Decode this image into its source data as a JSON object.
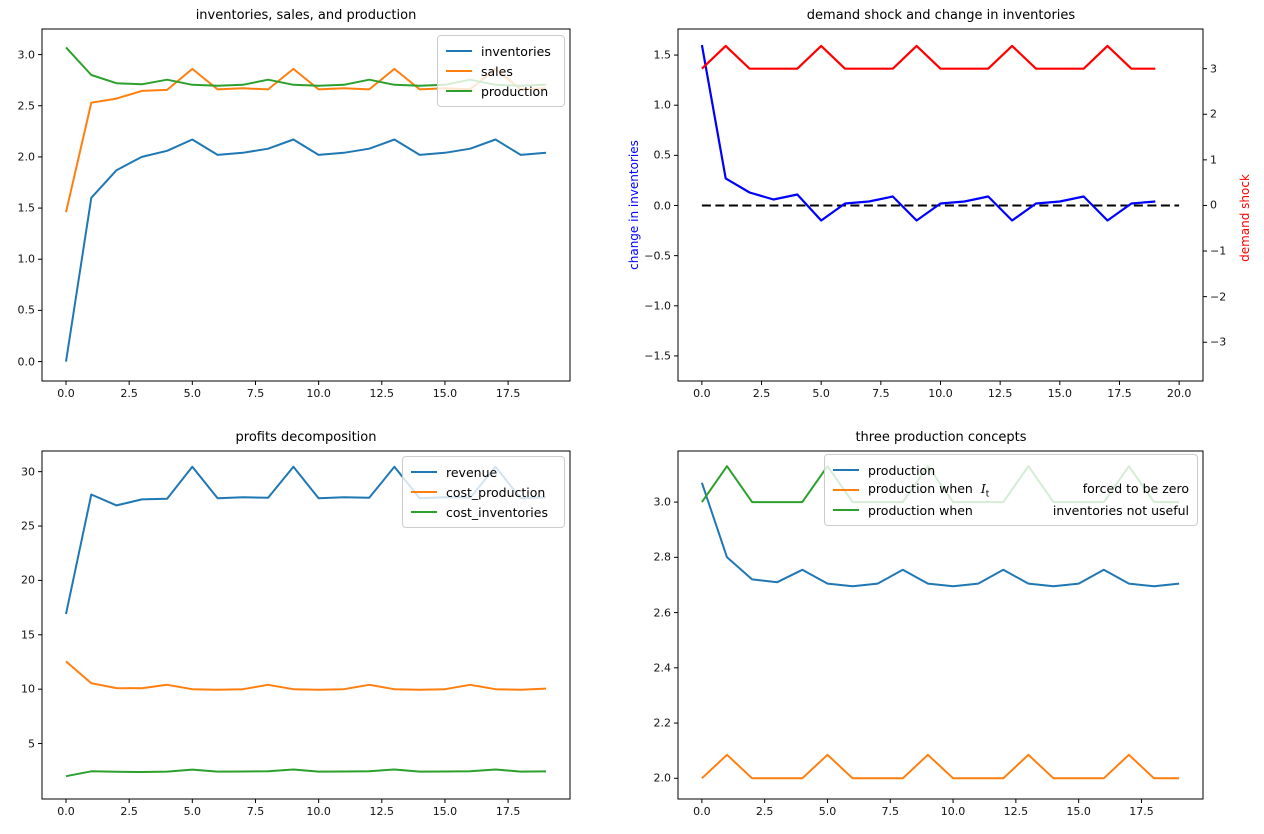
{
  "figure": {
    "background": "#ffffff"
  },
  "chart_data": [
    {
      "id": "inventories-sales-production",
      "type": "line",
      "title": "inventories, sales, and production",
      "xlabel": "",
      "ylabel": "",
      "xlim": [
        -0.95,
        19.95
      ],
      "ylim": [
        -0.19,
        3.25
      ],
      "grid": false,
      "legend_position": "upper right",
      "xticks": {
        "values": [
          0,
          2.5,
          5,
          7.5,
          10,
          12.5,
          15,
          17.5
        ],
        "labels": [
          "0.0",
          "2.5",
          "5.0",
          "7.5",
          "10.0",
          "12.5",
          "15.0",
          "17.5"
        ]
      },
      "yticks": {
        "values": [
          0,
          0.5,
          1,
          1.5,
          2,
          2.5,
          3
        ],
        "labels": [
          "0.0",
          "0.5",
          "1.0",
          "1.5",
          "2.0",
          "2.5",
          "3.0"
        ]
      },
      "x": [
        0,
        1,
        2,
        3,
        4,
        5,
        6,
        7,
        8,
        9,
        10,
        11,
        12,
        13,
        14,
        15,
        16,
        17,
        18,
        19
      ],
      "series": [
        {
          "name": "inventories",
          "color": "#1f77b4",
          "lw": 2,
          "values": [
            0.0,
            1.6,
            1.87,
            2.0,
            2.06,
            2.17,
            2.02,
            2.04,
            2.08,
            2.17,
            2.02,
            2.04,
            2.08,
            2.17,
            2.02,
            2.04,
            2.08,
            2.17,
            2.02,
            2.04
          ]
        },
        {
          "name": "sales",
          "color": "#ff7f0e",
          "lw": 2,
          "values": [
            1.46,
            2.53,
            2.57,
            2.645,
            2.655,
            2.86,
            2.66,
            2.67,
            2.66,
            2.86,
            2.66,
            2.67,
            2.66,
            2.86,
            2.66,
            2.67,
            2.66,
            2.86,
            2.66,
            2.67
          ]
        },
        {
          "name": "production",
          "color": "#2ca02c",
          "lw": 2,
          "values": [
            3.07,
            2.8,
            2.72,
            2.71,
            2.755,
            2.705,
            2.695,
            2.705,
            2.755,
            2.705,
            2.695,
            2.705,
            2.755,
            2.705,
            2.695,
            2.705,
            2.755,
            2.705,
            2.695,
            2.705
          ]
        }
      ],
      "legend": {
        "entries": [
          {
            "name": "inventories",
            "color": "#1f77b4",
            "parts": [
              "inventories"
            ]
          },
          {
            "name": "sales",
            "color": "#ff7f0e",
            "parts": [
              "sales"
            ]
          },
          {
            "name": "production",
            "color": "#2ca02c",
            "parts": [
              "production"
            ]
          }
        ]
      }
    },
    {
      "id": "demand-shock-and-change-in-inventories",
      "type": "line",
      "title": "demand shock and change in inventories",
      "ylabel_left": {
        "text": "change in inventories",
        "color": "#0000ff"
      },
      "ylabel_right": {
        "text": "demand shock",
        "color": "#ff0000"
      },
      "xlim": [
        -1,
        21
      ],
      "ylim": [
        -1.75,
        1.76
      ],
      "ylim_right": [
        -3.85,
        3.87
      ],
      "grid": false,
      "xticks": {
        "values": [
          0,
          2.5,
          5,
          7.5,
          10,
          12.5,
          15,
          17.5,
          20
        ],
        "labels": [
          "0.0",
          "2.5",
          "5.0",
          "7.5",
          "10.0",
          "12.5",
          "15.0",
          "17.5",
          "20.0"
        ]
      },
      "yticks": {
        "values": [
          -1.5,
          -1,
          -0.5,
          0,
          0.5,
          1,
          1.5
        ],
        "labels": [
          "−1.5",
          "−1.0",
          "−0.5",
          "0.0",
          "0.5",
          "1.0",
          "1.5"
        ]
      },
      "yticks_right": {
        "values": [
          -3,
          -2,
          -1,
          0,
          1,
          2,
          3
        ],
        "labels": [
          "−3",
          "−2",
          "−1",
          "0",
          "1",
          "2",
          "3"
        ]
      },
      "x": [
        0,
        1,
        2,
        3,
        4,
        5,
        6,
        7,
        8,
        9,
        10,
        11,
        12,
        13,
        14,
        15,
        16,
        17,
        18,
        19
      ],
      "series": [
        {
          "name": "zero line",
          "color": "#000000",
          "lw": 2,
          "dash": true,
          "axis": "left",
          "x": [
            0,
            20
          ],
          "values": [
            0,
            0
          ]
        },
        {
          "name": "change in inventories",
          "color": "#0000ff",
          "lw": 2.2,
          "axis": "left",
          "values": [
            1.6,
            0.27,
            0.13,
            0.06,
            0.11,
            -0.15,
            0.02,
            0.04,
            0.09,
            -0.15,
            0.02,
            0.04,
            0.09,
            -0.15,
            0.02,
            0.04,
            0.09,
            -0.15,
            0.02,
            0.04
          ]
        },
        {
          "name": "demand shock",
          "color": "#ff0000",
          "lw": 2.2,
          "axis": "right",
          "values": [
            3,
            3.5,
            3,
            3,
            3,
            3.5,
            3,
            3,
            3,
            3.5,
            3,
            3,
            3,
            3.5,
            3,
            3,
            3,
            3.5,
            3,
            3
          ]
        }
      ]
    },
    {
      "id": "profits-decomposition",
      "type": "line",
      "title": "profits decomposition",
      "xlim": [
        -0.95,
        19.95
      ],
      "ylim": [
        -0.1,
        31.9
      ],
      "grid": false,
      "legend_position": "upper right",
      "xticks": {
        "values": [
          0,
          2.5,
          5,
          7.5,
          10,
          12.5,
          15,
          17.5
        ],
        "labels": [
          "0.0",
          "2.5",
          "5.0",
          "7.5",
          "10.0",
          "12.5",
          "15.0",
          "17.5"
        ]
      },
      "yticks": {
        "values": [
          5,
          10,
          15,
          20,
          25,
          30
        ],
        "labels": [
          "5",
          "10",
          "15",
          "20",
          "25",
          "30"
        ]
      },
      "x": [
        0,
        1,
        2,
        3,
        4,
        5,
        6,
        7,
        8,
        9,
        10,
        11,
        12,
        13,
        14,
        15,
        16,
        17,
        18,
        19
      ],
      "series": [
        {
          "name": "revenue",
          "color": "#1f77b4",
          "lw": 2,
          "values": [
            16.9,
            27.9,
            26.9,
            27.45,
            27.5,
            30.45,
            27.55,
            27.65,
            27.6,
            30.45,
            27.55,
            27.65,
            27.6,
            30.45,
            27.55,
            27.65,
            27.6,
            30.45,
            27.55,
            27.65
          ]
        },
        {
          "name": "cost_production",
          "color": "#ff7f0e",
          "lw": 2,
          "values": [
            12.55,
            10.55,
            10.1,
            10.08,
            10.4,
            10.0,
            9.95,
            10.0,
            10.4,
            10.0,
            9.95,
            10.0,
            10.4,
            10.0,
            9.95,
            10.0,
            10.4,
            10.0,
            9.95,
            10.05
          ]
        },
        {
          "name": "cost_inventories",
          "color": "#2ca02c",
          "lw": 2,
          "values": [
            2.0,
            2.45,
            2.4,
            2.38,
            2.42,
            2.6,
            2.42,
            2.43,
            2.46,
            2.61,
            2.42,
            2.43,
            2.46,
            2.61,
            2.42,
            2.43,
            2.46,
            2.61,
            2.42,
            2.44
          ]
        }
      ],
      "legend": {
        "entries": [
          {
            "name": "revenue",
            "color": "#1f77b4",
            "parts": [
              "revenue"
            ]
          },
          {
            "name": "cost_production",
            "color": "#ff7f0e",
            "parts": [
              "cost_production"
            ]
          },
          {
            "name": "cost_inventories",
            "color": "#2ca02c",
            "parts": [
              "cost_inventories"
            ]
          }
        ]
      }
    },
    {
      "id": "three-production-concepts",
      "type": "line",
      "title": "three production concepts",
      "xlim": [
        -0.95,
        19.95
      ],
      "ylim": [
        1.925,
        3.185
      ],
      "grid": false,
      "legend_position": "upper right",
      "xticks": {
        "values": [
          0,
          2.5,
          5,
          7.5,
          10,
          12.5,
          15,
          17.5
        ],
        "labels": [
          "0.0",
          "2.5",
          "5.0",
          "7.5",
          "10.0",
          "12.5",
          "15.0",
          "17.5"
        ]
      },
      "yticks": {
        "values": [
          2,
          2.2,
          2.4,
          2.6,
          2.8,
          3
        ],
        "labels": [
          "2.0",
          "2.2",
          "2.4",
          "2.6",
          "2.8",
          "3.0"
        ]
      },
      "x": [
        0,
        1,
        2,
        3,
        4,
        5,
        6,
        7,
        8,
        9,
        10,
        11,
        12,
        13,
        14,
        15,
        16,
        17,
        18,
        19
      ],
      "series": [
        {
          "name": "production",
          "color": "#1f77b4",
          "lw": 2,
          "values": [
            3.07,
            2.8,
            2.72,
            2.71,
            2.755,
            2.705,
            2.695,
            2.705,
            2.755,
            2.705,
            2.695,
            2.705,
            2.755,
            2.705,
            2.695,
            2.705,
            2.755,
            2.705,
            2.695,
            2.705
          ]
        },
        {
          "name": "production when I_t forced to be zero",
          "color": "#ff7f0e",
          "lw": 2,
          "values": [
            2.0,
            2.085,
            2.0,
            2.0,
            2.0,
            2.085,
            2.0,
            2.0,
            2.0,
            2.085,
            2.0,
            2.0,
            2.0,
            2.085,
            2.0,
            2.0,
            2.0,
            2.085,
            2.0,
            2.0
          ]
        },
        {
          "name": "production when inventories not useful",
          "color": "#2ca02c",
          "lw": 2,
          "values": [
            3.0,
            3.13,
            3.0,
            3.0,
            3.0,
            3.13,
            3.0,
            3.0,
            3.0,
            3.13,
            3.0,
            3.0,
            3.0,
            3.13,
            3.0,
            3.0,
            3.0,
            3.13,
            3.0,
            3.0
          ]
        }
      ],
      "legend": {
        "entries": [
          {
            "name": "production",
            "color": "#1f77b4",
            "parts": [
              "production"
            ]
          },
          {
            "name": "production when I_t forced to be zero",
            "color": "#ff7f0e",
            "parts": [
              "production when  $I_t$",
              "forced to be zero"
            ]
          },
          {
            "name": "production when inventories not useful",
            "color": "#2ca02c",
            "parts": [
              "production when",
              "inventories not useful"
            ]
          }
        ]
      }
    }
  ]
}
